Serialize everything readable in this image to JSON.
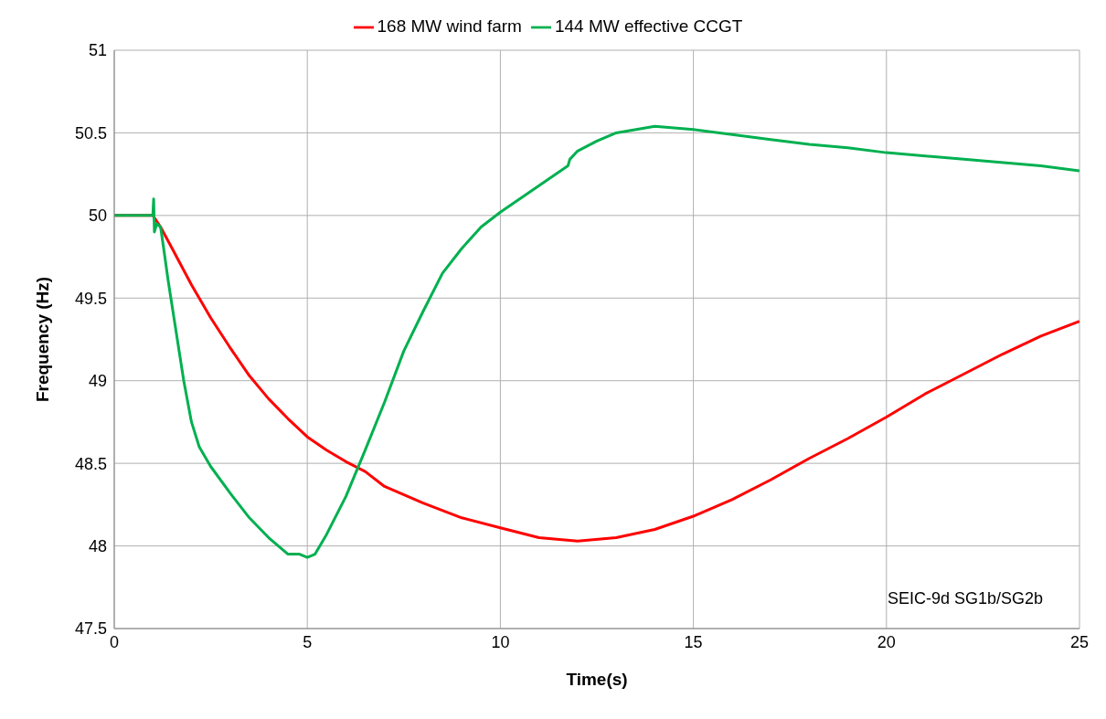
{
  "chart_data": {
    "type": "line",
    "xlabel": "Time(s)",
    "ylabel": "Frequency (Hz)",
    "xlim": [
      0,
      25
    ],
    "xticks": [
      0,
      5,
      10,
      15,
      20,
      25
    ],
    "ylim": [
      47.5,
      51
    ],
    "yticks": [
      47.5,
      48,
      48.5,
      49,
      49.5,
      50,
      50.5,
      51
    ],
    "grid": true,
    "legend": "top",
    "marker": "none",
    "line_style": "solid",
    "annotations": [
      "SEIC-9d SG1b/SG2b"
    ],
    "series": [
      {
        "name": "168 MW wind farm",
        "color": "#ff0000",
        "x": [
          0,
          1,
          1.2,
          1.5,
          2,
          2.5,
          3,
          3.5,
          4,
          4.5,
          5,
          5.5,
          6,
          6.5,
          7,
          8,
          9,
          10,
          11,
          12,
          13,
          14,
          15,
          16,
          17,
          18,
          19,
          20,
          21,
          22,
          23,
          24,
          25
        ],
        "values": [
          50,
          50,
          49.93,
          49.8,
          49.58,
          49.38,
          49.2,
          49.03,
          48.89,
          48.77,
          48.66,
          48.58,
          48.51,
          48.45,
          48.36,
          48.26,
          48.17,
          48.11,
          48.05,
          48.03,
          48.05,
          48.1,
          48.18,
          48.28,
          48.4,
          48.53,
          48.65,
          48.78,
          48.92,
          49.04,
          49.16,
          49.27,
          49.36
        ]
      },
      {
        "name": "144 MW effective CCGT",
        "color": "#00b050",
        "x": [
          0,
          1,
          1.02,
          1.04,
          1.1,
          1.2,
          1.25,
          1.4,
          1.6,
          1.8,
          2,
          2.2,
          2.5,
          3,
          3.5,
          4,
          4.5,
          4.8,
          5,
          5.2,
          5.5,
          6,
          6.5,
          7,
          7.5,
          8,
          8.5,
          9,
          9.5,
          10,
          11,
          11.75,
          11.8,
          12,
          12.5,
          13,
          14,
          15,
          16,
          17,
          18,
          19,
          20,
          22,
          24,
          25
        ],
        "values": [
          50,
          50,
          50.1,
          49.9,
          49.95,
          49.93,
          49.85,
          49.6,
          49.3,
          49,
          48.75,
          48.6,
          48.48,
          48.32,
          48.17,
          48.05,
          47.95,
          47.95,
          47.93,
          47.95,
          48.07,
          48.3,
          48.58,
          48.87,
          49.18,
          49.42,
          49.65,
          49.8,
          49.93,
          50.02,
          50.18,
          50.3,
          50.34,
          50.39,
          50.45,
          50.5,
          50.54,
          50.52,
          50.49,
          50.46,
          50.43,
          50.41,
          50.38,
          50.34,
          50.3,
          50.27
        ]
      }
    ]
  }
}
